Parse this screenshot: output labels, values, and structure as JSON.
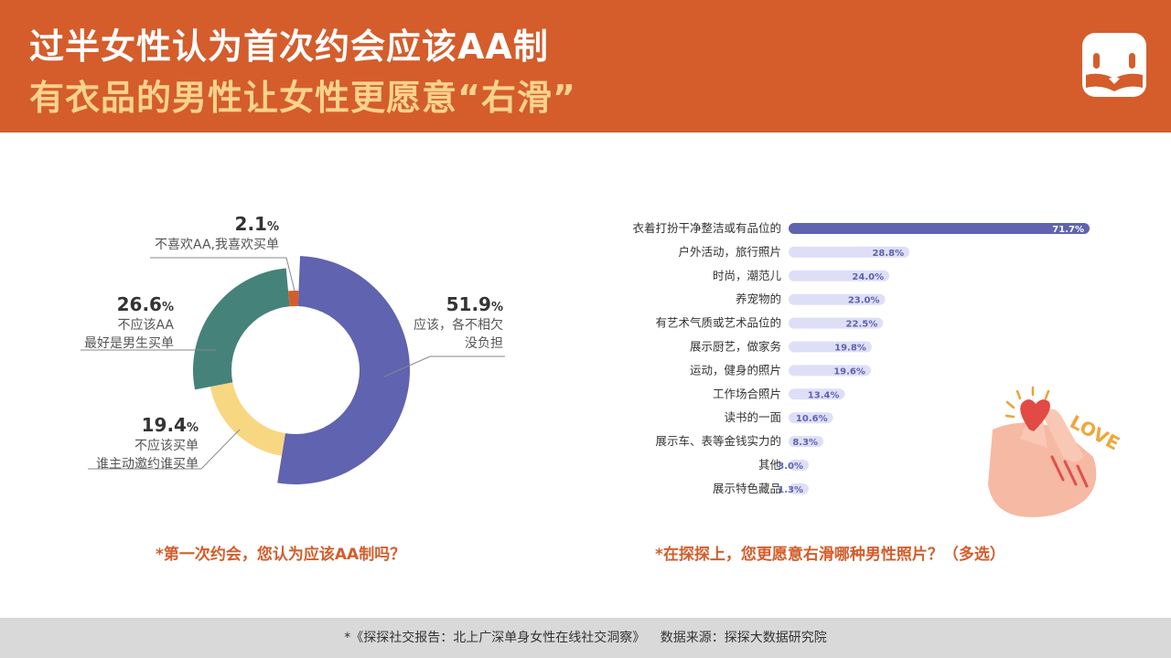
{
  "header": {
    "title_line1": "过半女性认为首次约会应该AA制",
    "title_line2": "有衣品的男性让女性更愿意“右滑”"
  },
  "colors": {
    "header_bg": "#d45d2b",
    "title2": "#f9d28c",
    "purple": "#5f63b0",
    "green": "#45827a",
    "yellow": "#f8d783",
    "orange": "#d45d2b",
    "bar_light": "#dedff7"
  },
  "donut": {
    "question": "*第一次约会，您认为应该AA制吗？",
    "slices": [
      {
        "value": "51.9",
        "pct_unit": "%",
        "line1": "应该，各不相欠",
        "line2": "没负担"
      },
      {
        "value": "19.4",
        "pct_unit": "%",
        "line1": "不应该买单",
        "line2": "谁主动邀约谁买单"
      },
      {
        "value": "26.6",
        "pct_unit": "%",
        "line1": "不应该AA",
        "line2": "最好是男生买单"
      },
      {
        "value": "2.1",
        "pct_unit": "%",
        "line1": "不喜欢AA,我喜欢买单",
        "line2": ""
      }
    ]
  },
  "bars": {
    "question": "*在探探上，您更愿意右滑哪种男性照片？（多选）",
    "love_text": "LOVE"
  },
  "chart_data": [
    {
      "type": "pie",
      "title": "*第一次约会，您认为应该AA制吗？",
      "categories": [
        "应该，各不相欠没负担",
        "不应该买单 谁主动邀约谁买单",
        "不应该AA 最好是男生买单",
        "不喜欢AA,我喜欢买单"
      ],
      "values": [
        51.9,
        19.4,
        26.6,
        2.1
      ],
      "colors": [
        "#5f63b0",
        "#f8d783",
        "#45827a",
        "#d45d2b"
      ]
    },
    {
      "type": "bar",
      "title": "*在探探上，您更愿意右滑哪种男性照片？（多选）",
      "categories": [
        "衣着打扮干净整洁或有品位的",
        "户外活动，旅行照片",
        "时尚，潮范儿",
        "养宠物的",
        "有艺术气质或艺术品位的",
        "展示厨艺，做家务",
        "运动，健身的照片",
        "工作场合照片",
        "读书的一面",
        "展示车、表等金钱实力的",
        "其他",
        "展示特色藏品"
      ],
      "values": [
        71.7,
        28.8,
        24.0,
        23.0,
        22.5,
        19.8,
        19.6,
        13.4,
        10.6,
        8.3,
        3.0,
        1.3
      ],
      "value_labels": [
        "71.7%",
        "28.8%",
        "24.0%",
        "23.0%",
        "22.5%",
        "19.8%",
        "19.6%",
        "13.4%",
        "10.6%",
        "8.3%",
        "3.0%",
        "1.3%"
      ],
      "xlim": [
        0,
        100
      ]
    }
  ],
  "footer": {
    "report": "*《探探社交报告：北上广深单身女性在线社交洞察》",
    "source": "数据来源：探探大数据研究院"
  }
}
